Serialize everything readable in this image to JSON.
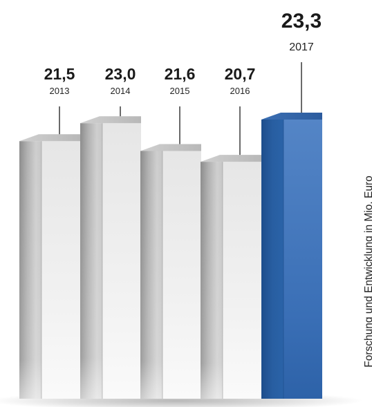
{
  "chart_data": {
    "type": "bar",
    "categories": [
      "2013",
      "2014",
      "2015",
      "2016",
      "2017"
    ],
    "values": [
      21.5,
      23.0,
      21.6,
      20.7,
      23.3
    ],
    "value_labels": [
      "21,5",
      "23,0",
      "21,6",
      "20,7",
      "23,3"
    ],
    "highlight_index": 4,
    "ylabel": "Forschung und Entwicklung in Mio. Euro",
    "title": "",
    "xlabel": "",
    "grid": false,
    "legend": "none",
    "style": "3d-column",
    "colors": {
      "bar": "#b4b4b4",
      "bar_light": "#f2f2f2",
      "highlight": "#235a9a",
      "highlight_light": "#4a7dc3",
      "text": "#1a1a1a",
      "leader": "#2a2a2a"
    }
  }
}
